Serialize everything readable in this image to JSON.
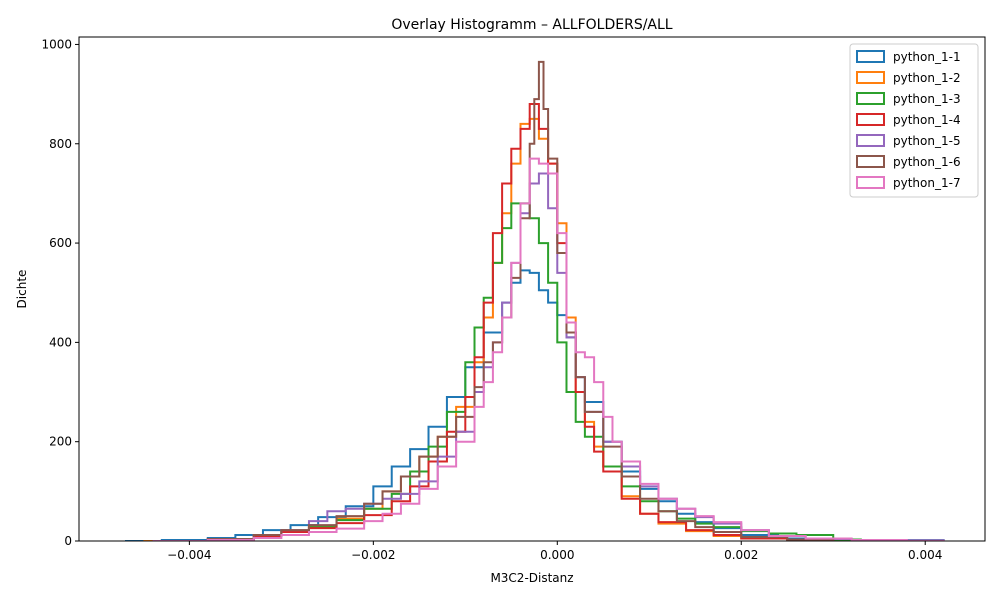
{
  "chart_data": {
    "type": "histogram-step",
    "title": "Overlay Histogramm – ALLFOLDERS/ALL",
    "xlabel": "M3C2-Distanz",
    "ylabel": "Dichte",
    "xlim": [
      -0.0052,
      0.00465
    ],
    "ylim": [
      0,
      1015
    ],
    "xticks": [
      -0.004,
      -0.002,
      0.0,
      0.002,
      0.004
    ],
    "xtick_labels": [
      "−0.004",
      "−0.002",
      "0.000",
      "0.002",
      "0.004"
    ],
    "yticks": [
      0,
      200,
      400,
      600,
      800,
      1000
    ],
    "ytick_labels": [
      "0",
      "200",
      "400",
      "600",
      "800",
      "1000"
    ],
    "grid": false,
    "legend_position": "top-right",
    "series": [
      {
        "name": "python_1-1",
        "color": "#1f77b4",
        "points": [
          [
            -0.0047,
            0
          ],
          [
            -0.0043,
            2
          ],
          [
            -0.0038,
            6
          ],
          [
            -0.0035,
            12
          ],
          [
            -0.0032,
            22
          ],
          [
            -0.0029,
            32
          ],
          [
            -0.0026,
            48
          ],
          [
            -0.0023,
            70
          ],
          [
            -0.002,
            110
          ],
          [
            -0.0018,
            150
          ],
          [
            -0.0016,
            185
          ],
          [
            -0.0014,
            230
          ],
          [
            -0.0012,
            290
          ],
          [
            -0.001,
            350
          ],
          [
            -0.0008,
            420
          ],
          [
            -0.0006,
            480
          ],
          [
            -0.0005,
            520
          ],
          [
            -0.0004,
            545
          ],
          [
            -0.0003,
            540
          ],
          [
            -0.0002,
            505
          ],
          [
            -0.0001,
            480
          ],
          [
            0.0,
            455
          ],
          [
            0.0001,
            410
          ],
          [
            0.0002,
            330
          ],
          [
            0.0003,
            280
          ],
          [
            0.0005,
            200
          ],
          [
            0.0007,
            140
          ],
          [
            0.0009,
            105
          ],
          [
            0.0011,
            80
          ],
          [
            0.0013,
            55
          ],
          [
            0.0015,
            38
          ],
          [
            0.0017,
            26
          ],
          [
            0.002,
            12
          ],
          [
            0.0024,
            5
          ],
          [
            0.003,
            2
          ],
          [
            0.0042,
            0
          ]
        ]
      },
      {
        "name": "python_1-2",
        "color": "#ff7f0e",
        "points": [
          [
            -0.0045,
            0
          ],
          [
            -0.0038,
            4
          ],
          [
            -0.0033,
            12
          ],
          [
            -0.003,
            20
          ],
          [
            -0.0027,
            30
          ],
          [
            -0.0024,
            45
          ],
          [
            -0.0021,
            65
          ],
          [
            -0.0019,
            100
          ],
          [
            -0.0017,
            130
          ],
          [
            -0.0015,
            170
          ],
          [
            -0.0013,
            210
          ],
          [
            -0.0011,
            270
          ],
          [
            -0.0009,
            360
          ],
          [
            -0.0008,
            450
          ],
          [
            -0.0007,
            560
          ],
          [
            -0.0006,
            660
          ],
          [
            -0.0005,
            760
          ],
          [
            -0.0004,
            840
          ],
          [
            -0.0003,
            850
          ],
          [
            -0.0002,
            810
          ],
          [
            -0.0001,
            760
          ],
          [
            0.0,
            640
          ],
          [
            0.0001,
            450
          ],
          [
            0.0002,
            300
          ],
          [
            0.0003,
            240
          ],
          [
            0.0004,
            190
          ],
          [
            0.0005,
            150
          ],
          [
            0.0007,
            90
          ],
          [
            0.0009,
            55
          ],
          [
            0.0011,
            35
          ],
          [
            0.0014,
            20
          ],
          [
            0.0017,
            10
          ],
          [
            0.002,
            5
          ],
          [
            0.0025,
            2
          ],
          [
            0.003,
            0
          ]
        ]
      },
      {
        "name": "python_1-3",
        "color": "#2ca02c",
        "points": [
          [
            -0.0044,
            0
          ],
          [
            -0.0038,
            3
          ],
          [
            -0.0033,
            10
          ],
          [
            -0.003,
            18
          ],
          [
            -0.0027,
            28
          ],
          [
            -0.0024,
            42
          ],
          [
            -0.0021,
            65
          ],
          [
            -0.0018,
            95
          ],
          [
            -0.0016,
            140
          ],
          [
            -0.0014,
            190
          ],
          [
            -0.0012,
            260
          ],
          [
            -0.001,
            360
          ],
          [
            -0.0009,
            430
          ],
          [
            -0.0008,
            490
          ],
          [
            -0.0007,
            560
          ],
          [
            -0.0006,
            630
          ],
          [
            -0.0005,
            680
          ],
          [
            -0.0004,
            680
          ],
          [
            -0.0003,
            650
          ],
          [
            -0.0002,
            600
          ],
          [
            -0.0001,
            520
          ],
          [
            0.0,
            400
          ],
          [
            0.0001,
            300
          ],
          [
            0.0002,
            240
          ],
          [
            0.0003,
            210
          ],
          [
            0.0005,
            150
          ],
          [
            0.0007,
            110
          ],
          [
            0.0009,
            80
          ],
          [
            0.0011,
            60
          ],
          [
            0.0013,
            45
          ],
          [
            0.0015,
            35
          ],
          [
            0.0017,
            28
          ],
          [
            0.002,
            20
          ],
          [
            0.0023,
            15
          ],
          [
            0.0026,
            12
          ],
          [
            0.0028,
            12
          ],
          [
            0.003,
            3
          ],
          [
            0.0033,
            0
          ]
        ]
      },
      {
        "name": "python_1-4",
        "color": "#d62728",
        "points": [
          [
            -0.0044,
            0
          ],
          [
            -0.0038,
            3
          ],
          [
            -0.0033,
            10
          ],
          [
            -0.003,
            18
          ],
          [
            -0.0027,
            26
          ],
          [
            -0.0024,
            36
          ],
          [
            -0.0021,
            52
          ],
          [
            -0.0018,
            80
          ],
          [
            -0.0016,
            110
          ],
          [
            -0.0014,
            160
          ],
          [
            -0.0012,
            220
          ],
          [
            -0.001,
            290
          ],
          [
            -0.0009,
            370
          ],
          [
            -0.0008,
            480
          ],
          [
            -0.0007,
            620
          ],
          [
            -0.0006,
            720
          ],
          [
            -0.0005,
            790
          ],
          [
            -0.0004,
            830
          ],
          [
            -0.0003,
            880
          ],
          [
            -0.0002,
            830
          ],
          [
            -0.0001,
            760
          ],
          [
            0.0,
            600
          ],
          [
            0.0001,
            420
          ],
          [
            0.0002,
            300
          ],
          [
            0.0003,
            230
          ],
          [
            0.0004,
            180
          ],
          [
            0.0005,
            140
          ],
          [
            0.0007,
            85
          ],
          [
            0.0009,
            55
          ],
          [
            0.0011,
            38
          ],
          [
            0.0014,
            22
          ],
          [
            0.0017,
            12
          ],
          [
            0.002,
            5
          ],
          [
            0.0025,
            2
          ],
          [
            0.003,
            0
          ]
        ]
      },
      {
        "name": "python_1-5",
        "color": "#9467bd",
        "points": [
          [
            -0.0044,
            0
          ],
          [
            -0.0038,
            4
          ],
          [
            -0.0033,
            12
          ],
          [
            -0.003,
            22
          ],
          [
            -0.0027,
            40
          ],
          [
            -0.0025,
            60
          ],
          [
            -0.0023,
            65
          ],
          [
            -0.0021,
            75
          ],
          [
            -0.0019,
            85
          ],
          [
            -0.0017,
            95
          ],
          [
            -0.0015,
            120
          ],
          [
            -0.0013,
            170
          ],
          [
            -0.0011,
            220
          ],
          [
            -0.0009,
            300
          ],
          [
            -0.0008,
            350
          ],
          [
            -0.0007,
            400
          ],
          [
            -0.0006,
            480
          ],
          [
            -0.0005,
            560
          ],
          [
            -0.0004,
            660
          ],
          [
            -0.0003,
            720
          ],
          [
            -0.0002,
            740
          ],
          [
            -0.0001,
            670
          ],
          [
            0.0,
            540
          ],
          [
            0.0001,
            410
          ],
          [
            0.0002,
            330
          ],
          [
            0.0003,
            260
          ],
          [
            0.0005,
            200
          ],
          [
            0.0007,
            150
          ],
          [
            0.0009,
            110
          ],
          [
            0.0011,
            85
          ],
          [
            0.0013,
            65
          ],
          [
            0.0015,
            48
          ],
          [
            0.0017,
            35
          ],
          [
            0.002,
            22
          ],
          [
            0.0023,
            10
          ],
          [
            0.0027,
            4
          ],
          [
            0.0032,
            1
          ],
          [
            0.0042,
            0
          ]
        ]
      },
      {
        "name": "python_1-6",
        "color": "#8c564b",
        "points": [
          [
            -0.0044,
            0
          ],
          [
            -0.0038,
            4
          ],
          [
            -0.0033,
            12
          ],
          [
            -0.003,
            22
          ],
          [
            -0.0027,
            32
          ],
          [
            -0.0024,
            50
          ],
          [
            -0.0021,
            75
          ],
          [
            -0.0019,
            100
          ],
          [
            -0.0017,
            130
          ],
          [
            -0.0015,
            170
          ],
          [
            -0.0013,
            210
          ],
          [
            -0.0011,
            250
          ],
          [
            -0.0009,
            310
          ],
          [
            -0.0008,
            360
          ],
          [
            -0.0007,
            400
          ],
          [
            -0.0006,
            450
          ],
          [
            -0.0005,
            530
          ],
          [
            -0.0004,
            650
          ],
          [
            -0.0003,
            800
          ],
          [
            -0.00025,
            890
          ],
          [
            -0.0002,
            965
          ],
          [
            -0.00015,
            870
          ],
          [
            -0.0001,
            770
          ],
          [
            0.0,
            580
          ],
          [
            0.0001,
            420
          ],
          [
            0.0002,
            330
          ],
          [
            0.0003,
            260
          ],
          [
            0.0005,
            190
          ],
          [
            0.0007,
            130
          ],
          [
            0.0009,
            85
          ],
          [
            0.0011,
            60
          ],
          [
            0.0013,
            40
          ],
          [
            0.0015,
            28
          ],
          [
            0.0017,
            18
          ],
          [
            0.002,
            8
          ],
          [
            0.0025,
            3
          ],
          [
            0.003,
            0
          ]
        ]
      },
      {
        "name": "python_1-7",
        "color": "#e377c2",
        "points": [
          [
            -0.0044,
            0
          ],
          [
            -0.0038,
            2
          ],
          [
            -0.0033,
            6
          ],
          [
            -0.003,
            12
          ],
          [
            -0.0027,
            18
          ],
          [
            -0.0024,
            25
          ],
          [
            -0.0021,
            40
          ],
          [
            -0.0019,
            55
          ],
          [
            -0.0017,
            75
          ],
          [
            -0.0015,
            105
          ],
          [
            -0.0013,
            150
          ],
          [
            -0.0011,
            200
          ],
          [
            -0.0009,
            270
          ],
          [
            -0.0008,
            320
          ],
          [
            -0.0007,
            380
          ],
          [
            -0.0006,
            450
          ],
          [
            -0.0005,
            560
          ],
          [
            -0.0004,
            680
          ],
          [
            -0.0003,
            770
          ],
          [
            -0.0002,
            760
          ],
          [
            -0.0001,
            740
          ],
          [
            0.0,
            620
          ],
          [
            0.0001,
            440
          ],
          [
            0.0002,
            380
          ],
          [
            0.0003,
            370
          ],
          [
            0.0004,
            320
          ],
          [
            0.0005,
            250
          ],
          [
            0.0006,
            200
          ],
          [
            0.0007,
            160
          ],
          [
            0.0009,
            115
          ],
          [
            0.0011,
            85
          ],
          [
            0.0013,
            65
          ],
          [
            0.0015,
            50
          ],
          [
            0.0017,
            38
          ],
          [
            0.002,
            22
          ],
          [
            0.0023,
            10
          ],
          [
            0.0027,
            5
          ],
          [
            0.0032,
            2
          ],
          [
            0.0038,
            1
          ],
          [
            0.0042,
            0
          ]
        ]
      }
    ]
  }
}
